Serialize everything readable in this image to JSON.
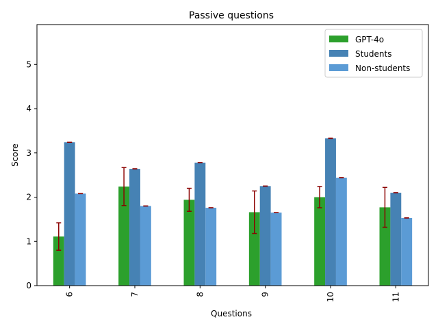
{
  "chart_data": {
    "type": "bar",
    "title": "Passive questions",
    "xlabel": "Questions",
    "ylabel": "Score",
    "categories": [
      "6",
      "7",
      "8",
      "9",
      "10",
      "11"
    ],
    "ylim": [
      0,
      5.9
    ],
    "yticks": [
      0,
      1,
      2,
      3,
      4,
      5
    ],
    "grid": false,
    "legend_position": "top-right",
    "x_tick_rotation": 90,
    "error_bar_color": "#8b0000",
    "series": [
      {
        "name": "GPT-4o",
        "color": "#2ca02c",
        "values": [
          1.11,
          2.24,
          1.94,
          1.66,
          2.0,
          1.77
        ],
        "errors": [
          [
            0.31,
            0.31
          ],
          [
            0.43,
            0.43
          ],
          [
            0.26,
            0.26
          ],
          [
            0.48,
            0.48
          ],
          [
            0.24,
            0.24
          ],
          [
            0.45,
            0.45
          ]
        ]
      },
      {
        "name": "Students",
        "color": "#4682b4",
        "values": [
          3.24,
          2.64,
          2.78,
          2.25,
          3.33,
          2.1
        ],
        "errors": [
          [
            0,
            0
          ],
          [
            0,
            0
          ],
          [
            0,
            0
          ],
          [
            0,
            0
          ],
          [
            0,
            0
          ],
          [
            0,
            0
          ]
        ]
      },
      {
        "name": "Non-students",
        "color": "#5b9bd5",
        "values": [
          2.08,
          1.8,
          1.76,
          1.65,
          2.44,
          1.53
        ],
        "errors": [
          [
            0,
            0
          ],
          [
            0,
            0
          ],
          [
            0,
            0
          ],
          [
            0,
            0
          ],
          [
            0,
            0
          ],
          [
            0,
            0
          ]
        ]
      }
    ]
  }
}
